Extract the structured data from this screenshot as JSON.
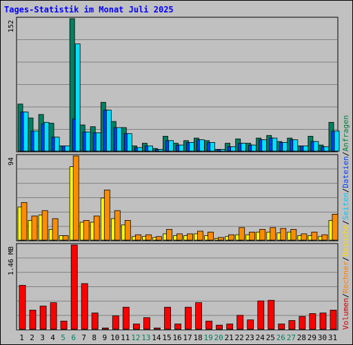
{
  "title": "Tages-Statistik im Monat Juli 2025",
  "legend": [
    {
      "label": "Anfragen",
      "color": "#008040"
    },
    {
      "label": "Dateien",
      "color": "#0040ff"
    },
    {
      "label": "Seiten",
      "color": "#00c8ff"
    },
    {
      "label": "Besuche",
      "color": "#ffd800"
    },
    {
      "label": "Rechner",
      "color": "#ff8000"
    },
    {
      "label": "Volumen",
      "color": "#d00000"
    }
  ],
  "legend_sep": "/",
  "weekend_days": [
    5,
    6,
    12,
    13,
    19,
    20,
    26,
    27
  ],
  "chart_data": [
    {
      "type": "bar",
      "categories": [
        "1",
        "2",
        "3",
        "4",
        "5",
        "6",
        "7",
        "8",
        "9",
        "10",
        "11",
        "12",
        "13",
        "14",
        "15",
        "16",
        "17",
        "18",
        "19",
        "20",
        "21",
        "22",
        "23",
        "24",
        "25",
        "26",
        "27",
        "28",
        "29",
        "30",
        "31"
      ],
      "ylim": [
        0,
        152
      ],
      "max_label": "152",
      "series": [
        {
          "name": "Anfragen",
          "color": "#008060",
          "values": [
            54,
            38,
            42,
            32,
            6,
            152,
            30,
            28,
            56,
            34,
            27,
            6,
            9,
            3,
            17,
            9,
            12,
            15,
            12,
            2,
            9,
            14,
            9,
            15,
            18,
            11,
            15,
            6,
            17,
            7,
            33
          ]
        },
        {
          "name": "Dateien",
          "color": "#0040ff",
          "values": [
            45,
            23,
            31,
            16,
            6,
            37,
            22,
            21,
            47,
            27,
            20,
            4,
            6,
            2,
            12,
            7,
            10,
            13,
            10,
            2,
            5,
            9,
            7,
            13,
            15,
            10,
            13,
            6,
            11,
            5,
            23
          ]
        },
        {
          "name": "Seiten",
          "color": "#00e0ff",
          "values": [
            45,
            23,
            33,
            16,
            6,
            123,
            22,
            21,
            47,
            27,
            20,
            4,
            6,
            2,
            12,
            7,
            10,
            13,
            10,
            2,
            5,
            9,
            7,
            13,
            15,
            10,
            13,
            6,
            11,
            5,
            23
          ]
        }
      ]
    },
    {
      "type": "bar",
      "categories": [
        "1",
        "2",
        "3",
        "4",
        "5",
        "6",
        "7",
        "8",
        "9",
        "10",
        "11",
        "12",
        "13",
        "14",
        "15",
        "16",
        "17",
        "18",
        "19",
        "20",
        "21",
        "22",
        "23",
        "24",
        "25",
        "26",
        "27",
        "28",
        "29",
        "30",
        "31"
      ],
      "ylim": [
        0,
        94
      ],
      "max_label": "94",
      "series": [
        {
          "name": "Besuche",
          "color": "#ffff00",
          "values": [
            37,
            22,
            28,
            12,
            5,
            82,
            20,
            20,
            47,
            24,
            17,
            4,
            4,
            3,
            7,
            5,
            5,
            7,
            5,
            2,
            4,
            6,
            6,
            9,
            9,
            8,
            9,
            5,
            5,
            4,
            22
          ]
        },
        {
          "name": "Rechner",
          "color": "#ff8c00",
          "values": [
            42,
            27,
            33,
            24,
            5,
            94,
            22,
            27,
            56,
            33,
            22,
            6,
            6,
            4,
            12,
            7,
            7,
            10,
            9,
            3,
            6,
            14,
            9,
            12,
            14,
            13,
            12,
            7,
            9,
            6,
            29
          ]
        }
      ]
    },
    {
      "type": "bar",
      "categories": [
        "1",
        "2",
        "3",
        "4",
        "5",
        "6",
        "7",
        "8",
        "9",
        "10",
        "11",
        "12",
        "13",
        "14",
        "15",
        "16",
        "17",
        "18",
        "19",
        "20",
        "21",
        "22",
        "23",
        "24",
        "25",
        "26",
        "27",
        "28",
        "29",
        "30",
        "31"
      ],
      "ylim": [
        0,
        1.46
      ],
      "max_label": "1.46 MB",
      "series": [
        {
          "name": "Volumen",
          "color": "#ff0000",
          "values": [
            0.76,
            0.33,
            0.4,
            0.46,
            0.14,
            1.46,
            0.79,
            0.28,
            0.02,
            0.23,
            0.38,
            0.09,
            0.2,
            0.02,
            0.38,
            0.09,
            0.38,
            0.46,
            0.14,
            0.07,
            0.09,
            0.24,
            0.16,
            0.49,
            0.5,
            0.09,
            0.15,
            0.22,
            0.27,
            0.28,
            0.33
          ]
        }
      ]
    }
  ]
}
